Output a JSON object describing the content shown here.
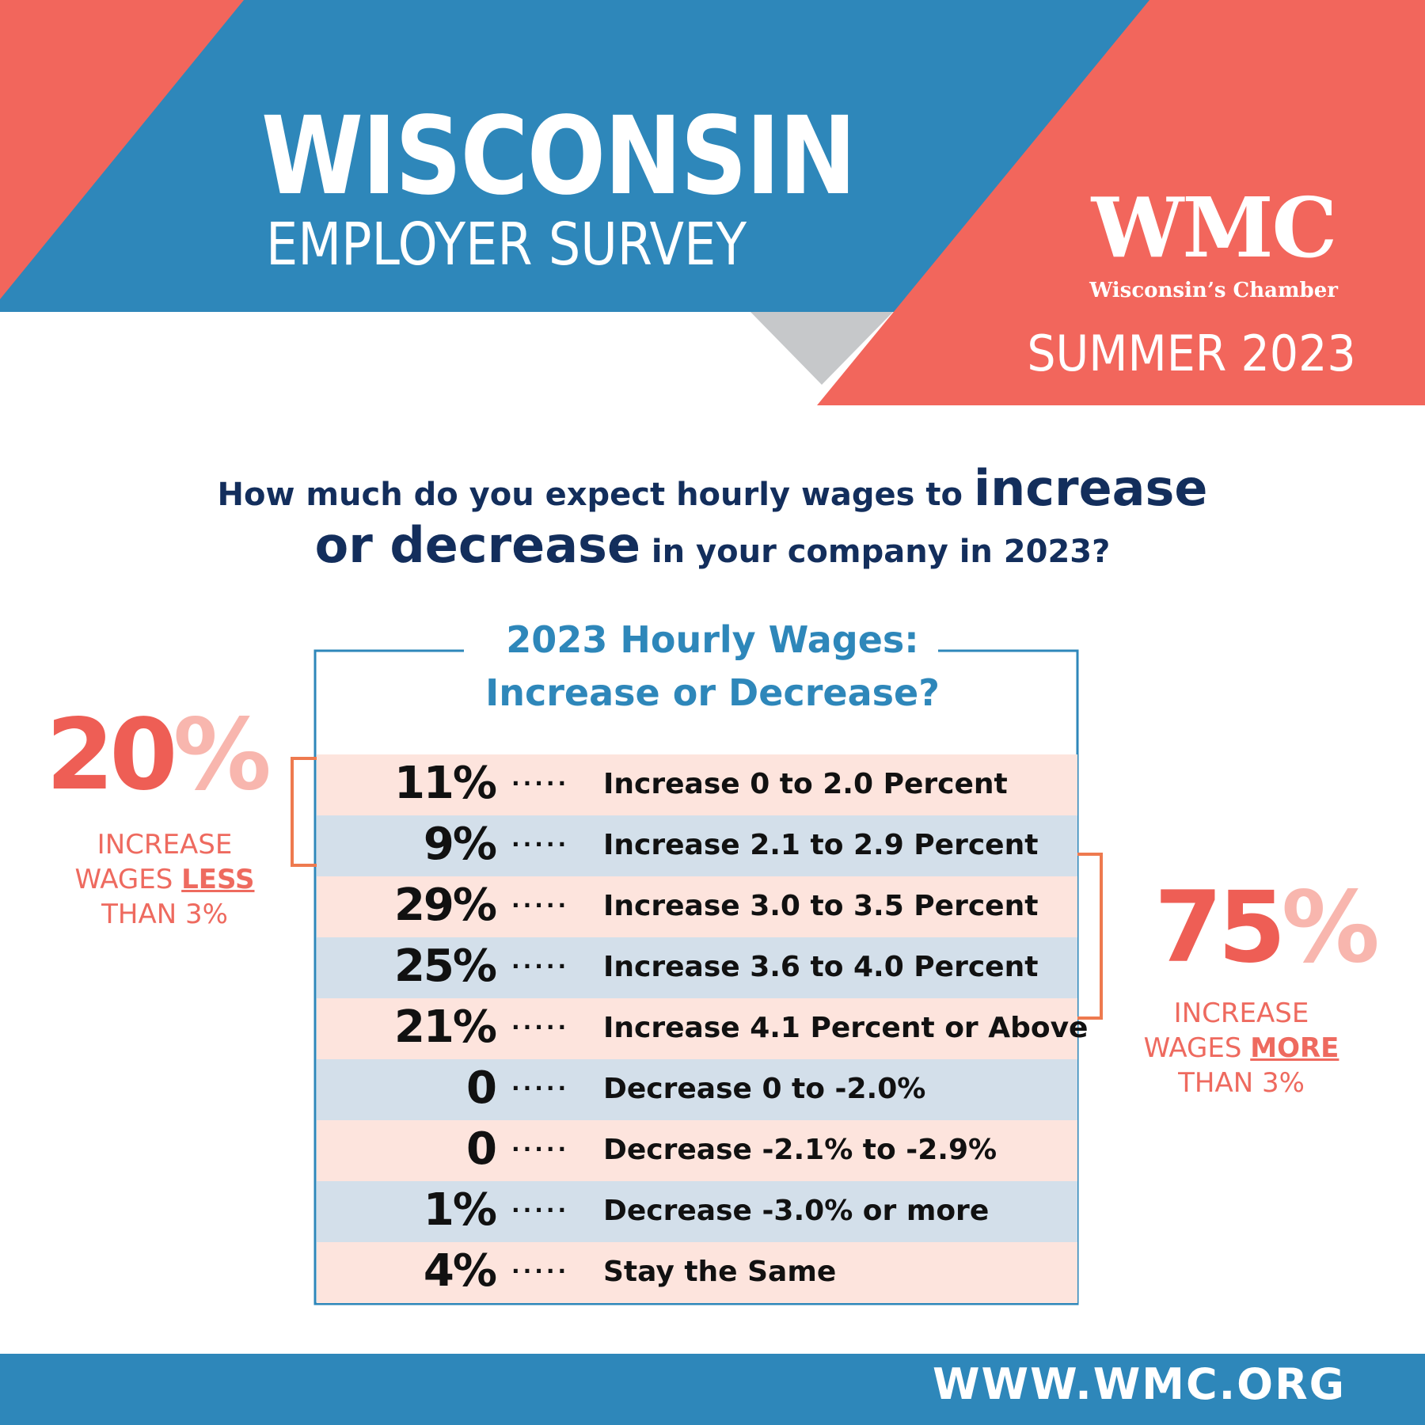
{
  "header": {
    "title": "WISCONSIN",
    "subtitle": "EMPLOYER SURVEY"
  },
  "logo": {
    "name": "WMC",
    "tagline": "Wisconsin’s Chamber"
  },
  "season": "SUMMER 2023",
  "question": {
    "part1": "How much do you expect hourly wages to ",
    "emph1": "increase",
    "part2": "or decrease",
    "part3": " in your company in 2023?"
  },
  "colors": {
    "blue": "#2e87ba",
    "coral": "#f2665c",
    "coral_light": "#f8b6ae",
    "navy": "#132e5c",
    "gray": "#c9c9c9",
    "row_pink": "#fde4dd",
    "row_blue": "#d3dfea",
    "bracket": "#ee7a4f"
  },
  "chart_data": {
    "type": "table",
    "title_line1": "2023 Hourly Wages:",
    "title_line2": "Increase or Decrease?",
    "rows": [
      {
        "value": "11%",
        "label": "Increase 0 to 2.0 Percent"
      },
      {
        "value": "9%",
        "label": "Increase 2.1 to 2.9 Percent"
      },
      {
        "value": "29%",
        "label": "Increase 3.0 to 3.5 Percent"
      },
      {
        "value": "25%",
        "label": "Increase 3.6 to 4.0 Percent"
      },
      {
        "value": "21%",
        "label": "Increase 4.1 Percent or Above"
      },
      {
        "value": "0",
        "label": "Decrease 0 to -2.0%"
      },
      {
        "value": "0",
        "label": "Decrease -2.1% to -2.9%"
      },
      {
        "value": "1%",
        "label": "Decrease -3.0% or more"
      },
      {
        "value": "4%",
        "label": "Stay the Same"
      }
    ],
    "dots": "·····"
  },
  "summary_left": {
    "number": "20",
    "sign": "%",
    "line1": "INCREASE",
    "line2a": "WAGES ",
    "line2b": "LESS",
    "line3": "THAN 3%"
  },
  "summary_right": {
    "number": "75",
    "sign": "%",
    "line1": "INCREASE",
    "line2a": "WAGES ",
    "line2b": "MORE",
    "line3": "THAN 3%"
  },
  "footer": {
    "url": "WWW.WMC.ORG"
  }
}
